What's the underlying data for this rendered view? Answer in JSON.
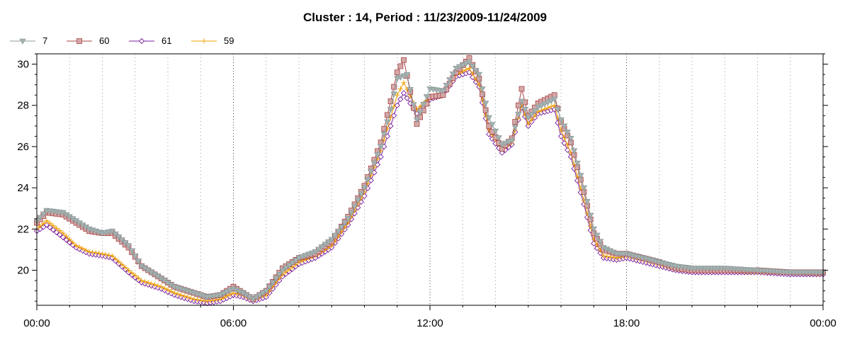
{
  "chart_data": {
    "type": "line",
    "title": "Cluster : 14, Period : 11/23/2009-11/24/2009",
    "xlabel": "",
    "ylabel": "",
    "x_ticks": [
      "00:00",
      "06:00",
      "12:00",
      "18:00",
      "00:00"
    ],
    "x_range_hours": [
      0,
      24
    ],
    "ylim": [
      18.3,
      30.5
    ],
    "y_ticks": [
      20,
      22,
      24,
      26,
      28,
      30
    ],
    "grid": {
      "x_major_dotted": true,
      "x_minor_dotted": true,
      "y": false
    },
    "legend_position": "top-left",
    "series": [
      {
        "name": "7",
        "color": "#8c9a9a",
        "marker": "triangle-down",
        "points": [
          [
            0,
            22.4
          ],
          [
            0.3,
            22.9
          ],
          [
            0.8,
            22.8
          ],
          [
            1.2,
            22.4
          ],
          [
            1.6,
            22.0
          ],
          [
            2.0,
            21.8
          ],
          [
            2.3,
            21.9
          ],
          [
            2.8,
            21.2
          ],
          [
            3.2,
            20.2
          ],
          [
            3.8,
            19.6
          ],
          [
            4.2,
            19.2
          ],
          [
            4.8,
            18.9
          ],
          [
            5.2,
            18.7
          ],
          [
            5.6,
            18.8
          ],
          [
            6.0,
            19.1
          ],
          [
            6.3,
            18.9
          ],
          [
            6.6,
            18.6
          ],
          [
            7.0,
            19.0
          ],
          [
            7.5,
            20.0
          ],
          [
            8.0,
            20.6
          ],
          [
            8.5,
            20.9
          ],
          [
            9.0,
            21.5
          ],
          [
            9.5,
            22.5
          ],
          [
            10.0,
            24.0
          ],
          [
            10.5,
            26.0
          ],
          [
            10.8,
            27.8
          ],
          [
            11.0,
            29.3
          ],
          [
            11.3,
            29.5
          ],
          [
            11.6,
            27.3
          ],
          [
            12.0,
            28.8
          ],
          [
            12.4,
            28.7
          ],
          [
            12.8,
            29.8
          ],
          [
            13.2,
            30.1
          ],
          [
            13.5,
            29.5
          ],
          [
            13.8,
            27.4
          ],
          [
            14.2,
            26.1
          ],
          [
            14.5,
            26.3
          ],
          [
            14.8,
            28.2
          ],
          [
            15.0,
            27.4
          ],
          [
            15.3,
            27.9
          ],
          [
            15.8,
            28.3
          ],
          [
            16.0,
            27.3
          ],
          [
            16.3,
            26.4
          ],
          [
            16.7,
            24.0
          ],
          [
            17.0,
            22.0
          ],
          [
            17.3,
            21.1
          ],
          [
            17.7,
            20.8
          ],
          [
            18.0,
            20.8
          ],
          [
            18.5,
            20.6
          ],
          [
            19.0,
            20.4
          ],
          [
            19.5,
            20.2
          ],
          [
            20.0,
            20.1
          ],
          [
            21.0,
            20.1
          ],
          [
            22.0,
            20.0
          ],
          [
            23.0,
            19.9
          ],
          [
            24.0,
            19.9
          ]
        ]
      },
      {
        "name": "60",
        "color": "#aa4444",
        "fill": "#d4a8a8",
        "marker": "square",
        "points": [
          [
            0,
            22.3
          ],
          [
            0.3,
            22.8
          ],
          [
            0.8,
            22.7
          ],
          [
            1.2,
            22.3
          ],
          [
            1.6,
            21.9
          ],
          [
            2.0,
            21.8
          ],
          [
            2.3,
            21.8
          ],
          [
            2.8,
            21.1
          ],
          [
            3.2,
            20.2
          ],
          [
            3.8,
            19.6
          ],
          [
            4.2,
            19.2
          ],
          [
            4.8,
            18.9
          ],
          [
            5.2,
            18.7
          ],
          [
            5.6,
            18.8
          ],
          [
            6.0,
            19.2
          ],
          [
            6.3,
            18.9
          ],
          [
            6.6,
            18.6
          ],
          [
            7.0,
            19.0
          ],
          [
            7.5,
            20.1
          ],
          [
            8.0,
            20.6
          ],
          [
            8.5,
            20.8
          ],
          [
            9.0,
            21.4
          ],
          [
            9.5,
            22.6
          ],
          [
            10.0,
            24.1
          ],
          [
            10.5,
            26.2
          ],
          [
            10.8,
            28.2
          ],
          [
            11.0,
            29.6
          ],
          [
            11.2,
            30.2
          ],
          [
            11.6,
            27.1
          ],
          [
            12.0,
            28.4
          ],
          [
            12.4,
            28.5
          ],
          [
            12.8,
            29.6
          ],
          [
            13.2,
            30.3
          ],
          [
            13.5,
            29.3
          ],
          [
            13.8,
            27.0
          ],
          [
            14.2,
            25.9
          ],
          [
            14.5,
            26.4
          ],
          [
            14.8,
            28.8
          ],
          [
            15.0,
            27.5
          ],
          [
            15.3,
            28.1
          ],
          [
            15.8,
            28.5
          ],
          [
            16.0,
            27.2
          ],
          [
            16.3,
            26.2
          ],
          [
            16.7,
            23.8
          ],
          [
            17.0,
            21.8
          ],
          [
            17.3,
            21.0
          ],
          [
            17.7,
            20.8
          ],
          [
            18.0,
            20.8
          ],
          [
            18.5,
            20.6
          ],
          [
            19.0,
            20.4
          ],
          [
            19.5,
            20.1
          ],
          [
            20.0,
            20.0
          ],
          [
            21.0,
            20.0
          ],
          [
            22.0,
            20.0
          ],
          [
            23.0,
            19.9
          ],
          [
            24.0,
            19.9
          ]
        ]
      },
      {
        "name": "61",
        "color": "#7a1d9e",
        "marker": "diamond",
        "points": [
          [
            0,
            21.9
          ],
          [
            0.3,
            22.2
          ],
          [
            0.8,
            21.6
          ],
          [
            1.2,
            21.1
          ],
          [
            1.6,
            20.8
          ],
          [
            2.0,
            20.7
          ],
          [
            2.3,
            20.6
          ],
          [
            2.8,
            19.9
          ],
          [
            3.2,
            19.4
          ],
          [
            3.8,
            19.1
          ],
          [
            4.2,
            18.8
          ],
          [
            4.8,
            18.5
          ],
          [
            5.2,
            18.4
          ],
          [
            5.6,
            18.5
          ],
          [
            6.0,
            18.8
          ],
          [
            6.3,
            18.7
          ],
          [
            6.6,
            18.5
          ],
          [
            7.0,
            18.7
          ],
          [
            7.5,
            19.7
          ],
          [
            8.0,
            20.3
          ],
          [
            8.5,
            20.6
          ],
          [
            9.0,
            21.1
          ],
          [
            9.5,
            22.2
          ],
          [
            10.0,
            23.6
          ],
          [
            10.5,
            25.5
          ],
          [
            10.8,
            27.0
          ],
          [
            11.0,
            28.0
          ],
          [
            11.2,
            28.6
          ],
          [
            11.6,
            27.6
          ],
          [
            12.0,
            28.3
          ],
          [
            12.4,
            28.5
          ],
          [
            12.8,
            29.4
          ],
          [
            13.2,
            29.6
          ],
          [
            13.5,
            28.9
          ],
          [
            13.8,
            26.6
          ],
          [
            14.2,
            25.7
          ],
          [
            14.5,
            26.1
          ],
          [
            14.8,
            27.9
          ],
          [
            15.0,
            27.0
          ],
          [
            15.3,
            27.6
          ],
          [
            15.8,
            27.8
          ],
          [
            16.0,
            26.5
          ],
          [
            16.3,
            25.5
          ],
          [
            16.7,
            23.2
          ],
          [
            17.0,
            21.3
          ],
          [
            17.3,
            20.6
          ],
          [
            17.7,
            20.5
          ],
          [
            18.0,
            20.6
          ],
          [
            18.5,
            20.4
          ],
          [
            19.0,
            20.2
          ],
          [
            19.5,
            20.0
          ],
          [
            20.0,
            19.9
          ],
          [
            21.0,
            19.9
          ],
          [
            22.0,
            19.9
          ],
          [
            23.0,
            19.8
          ],
          [
            24.0,
            19.8
          ]
        ]
      },
      {
        "name": "59",
        "color": "#f0a000",
        "marker": "plus",
        "points": [
          [
            0,
            22.0
          ],
          [
            0.3,
            22.4
          ],
          [
            0.8,
            21.8
          ],
          [
            1.2,
            21.2
          ],
          [
            1.6,
            20.9
          ],
          [
            2.0,
            20.8
          ],
          [
            2.3,
            20.7
          ],
          [
            2.8,
            20.0
          ],
          [
            3.2,
            19.5
          ],
          [
            3.8,
            19.2
          ],
          [
            4.2,
            18.9
          ],
          [
            4.8,
            18.6
          ],
          [
            5.2,
            18.5
          ],
          [
            5.6,
            18.6
          ],
          [
            6.0,
            18.9
          ],
          [
            6.3,
            18.8
          ],
          [
            6.6,
            18.6
          ],
          [
            7.0,
            18.8
          ],
          [
            7.5,
            19.8
          ],
          [
            8.0,
            20.4
          ],
          [
            8.5,
            20.7
          ],
          [
            9.0,
            21.2
          ],
          [
            9.5,
            22.3
          ],
          [
            10.0,
            23.8
          ],
          [
            10.5,
            25.8
          ],
          [
            10.8,
            27.4
          ],
          [
            11.0,
            28.5
          ],
          [
            11.2,
            29.1
          ],
          [
            11.6,
            27.8
          ],
          [
            12.0,
            28.4
          ],
          [
            12.4,
            28.6
          ],
          [
            12.8,
            29.5
          ],
          [
            13.2,
            29.8
          ],
          [
            13.5,
            29.0
          ],
          [
            13.8,
            26.8
          ],
          [
            14.2,
            25.9
          ],
          [
            14.5,
            26.2
          ],
          [
            14.8,
            28.0
          ],
          [
            15.0,
            27.1
          ],
          [
            15.3,
            27.7
          ],
          [
            15.8,
            28.0
          ],
          [
            16.0,
            26.8
          ],
          [
            16.3,
            25.7
          ],
          [
            16.7,
            23.4
          ],
          [
            17.0,
            21.5
          ],
          [
            17.3,
            20.7
          ],
          [
            17.7,
            20.6
          ],
          [
            18.0,
            20.7
          ],
          [
            18.5,
            20.5
          ],
          [
            19.0,
            20.3
          ],
          [
            19.5,
            20.1
          ],
          [
            20.0,
            20.0
          ],
          [
            21.0,
            20.0
          ],
          [
            22.0,
            19.9
          ],
          [
            23.0,
            19.9
          ],
          [
            24.0,
            19.8
          ]
        ]
      }
    ]
  }
}
